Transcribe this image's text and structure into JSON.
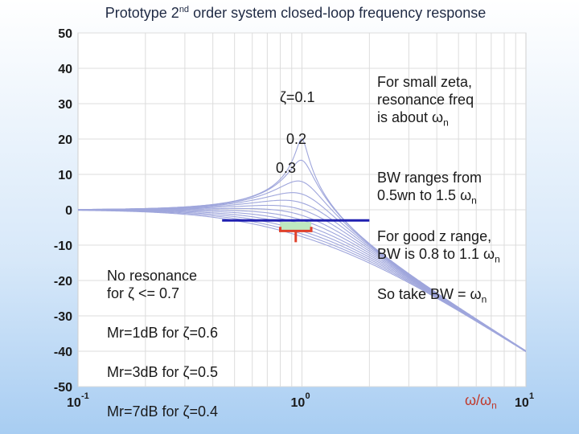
{
  "title": {
    "main": "Prototype 2",
    "sup": "nd",
    "rest": " order system closed-loop frequency response"
  },
  "chart_data": {
    "type": "line",
    "title": "Prototype 2nd order system closed-loop frequency response",
    "xscale": "log",
    "xlim": [
      0.1,
      10
    ],
    "ylim": [
      -50,
      50
    ],
    "yticks": [
      50,
      40,
      30,
      20,
      10,
      0,
      -10,
      -20,
      -30,
      -40,
      -50
    ],
    "xtick_labels": [
      {
        "base": "10",
        "exp": "-1"
      },
      {
        "base": "10",
        "exp": "0"
      },
      {
        "base": "10",
        "exp": "1"
      }
    ],
    "xlabel": {
      "num": "ω/ω",
      "sub": "n"
    },
    "grid": true,
    "series": [
      {
        "name": "ζ=0.05",
        "zeta": 0.05
      },
      {
        "name": "ζ=0.1",
        "zeta": 0.1
      },
      {
        "name": "ζ=0.2",
        "zeta": 0.2
      },
      {
        "name": "ζ=0.3",
        "zeta": 0.3
      },
      {
        "name": "ζ=0.4",
        "zeta": 0.4
      },
      {
        "name": "ζ=0.5",
        "zeta": 0.5
      },
      {
        "name": "ζ=0.6",
        "zeta": 0.6
      },
      {
        "name": "ζ=0.7",
        "zeta": 0.7
      },
      {
        "name": "ζ=0.8",
        "zeta": 0.8
      },
      {
        "name": "ζ=0.9",
        "zeta": 0.9
      },
      {
        "name": "ζ=1.0",
        "zeta": 1.0
      },
      {
        "name": "ζ=1.1",
        "zeta": 1.1
      },
      {
        "name": "ζ=1.2",
        "zeta": 1.2
      }
    ],
    "reference_line": {
      "y": -3,
      "x_start": 0.44,
      "x_end": 2.0
    },
    "bandwidth_range": {
      "x_start": 0.8,
      "x_end": 1.1,
      "y": -6
    }
  },
  "annotations": {
    "zeta_01": "ζ=0.1",
    "zeta_02": "0.2",
    "zeta_03": "0.3",
    "small_zeta": [
      "For small zeta,",
      "resonance freq",
      "is about ω"
    ],
    "sub_n": "n",
    "bw_range": [
      "BW ranges from",
      "0.5wn to 1.5 ω"
    ],
    "good_z": [
      "For good z range,",
      "BW is 0.8 to 1.1 ω"
    ],
    "take_bw": "So take BW = ω",
    "no_res": [
      "No resonance",
      "for ζ <= 0.7"
    ],
    "mr1": "Mr=1dB for ζ=0.6",
    "mr3": "Mr=3dB for ζ=0.5",
    "mr7": "Mr=7dB for ζ=0.4"
  },
  "colors": {
    "curve": "#9fa6dc",
    "ref_line": "#1f1fb0",
    "bracket": "#e0402a",
    "band": "#bfe8c0"
  }
}
